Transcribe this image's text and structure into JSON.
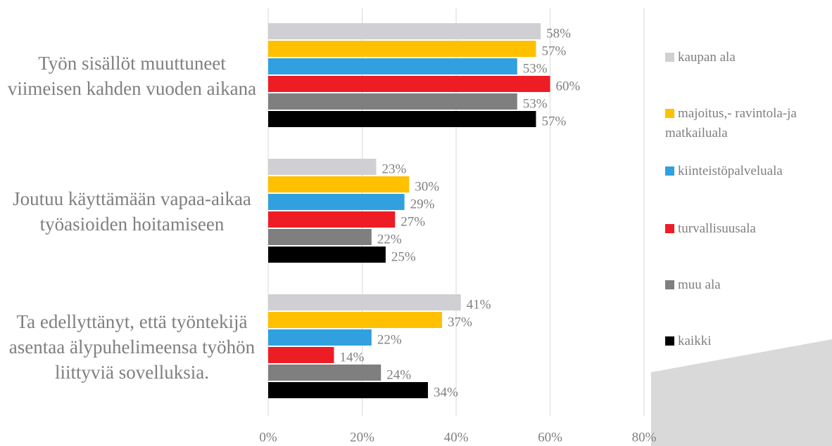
{
  "chart_data": {
    "type": "bar",
    "orientation": "horizontal",
    "categories": [
      "Työn sisällöt muuttuneet viimeisen kahden vuoden aikana",
      "Joutuu käyttämään vapaa-aikaa työasioiden hoitamiseen",
      "Ta edellyttänyt, että työntekijä asentaa älypuhelimeensa työhön liittyviä sovelluksia."
    ],
    "series": [
      {
        "name": "kaupan ala",
        "color": "#d0d0d4",
        "values": [
          58,
          23,
          41
        ],
        "value_labels": [
          "58%",
          "23%",
          "41%"
        ]
      },
      {
        "name": "majoitus,- ravintola-ja matkailuala",
        "color": "#ffc000",
        "values": [
          57,
          30,
          37
        ],
        "value_labels": [
          "57%",
          "30%",
          "37%"
        ]
      },
      {
        "name": "kiinteistöpalveluala",
        "color": "#31a0e0",
        "values": [
          53,
          29,
          22
        ],
        "value_labels": [
          "53%",
          "29%",
          "22%"
        ]
      },
      {
        "name": "turvallisuusala",
        "color": "#ee1c25",
        "values": [
          60,
          27,
          14
        ],
        "value_labels": [
          "60%",
          "27%",
          "14%"
        ]
      },
      {
        "name": "muu ala",
        "color": "#7f7f7f",
        "values": [
          53,
          22,
          24
        ],
        "value_labels": [
          "53%",
          "22%",
          "24%"
        ]
      },
      {
        "name": "kaikki",
        "color": "#000000",
        "values": [
          57,
          25,
          34
        ],
        "value_labels": [
          "57%",
          "25%",
          "34%"
        ]
      }
    ],
    "xlim": [
      0,
      80
    ],
    "xticks": [
      {
        "value": 0,
        "label": "0%"
      },
      {
        "value": 20,
        "label": "20%"
      },
      {
        "value": 40,
        "label": "40%"
      },
      {
        "value": 60,
        "label": "60%"
      },
      {
        "value": 80,
        "label": "80%"
      }
    ],
    "grid": true,
    "legend": "right"
  }
}
